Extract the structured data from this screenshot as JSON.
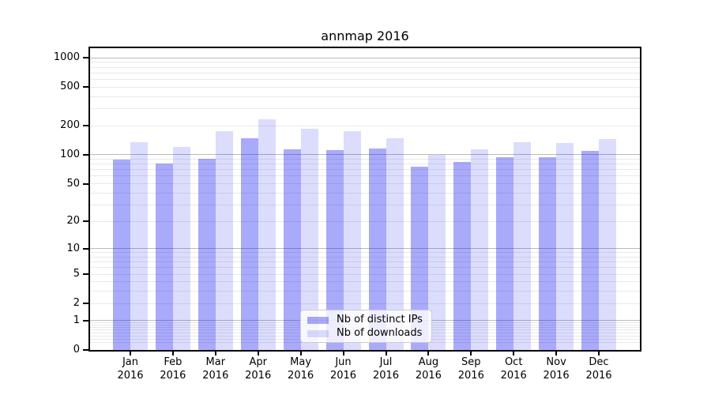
{
  "chart_data": {
    "type": "bar",
    "title": "annmap 2016",
    "year_label": "2016",
    "categories": [
      "Jan",
      "Feb",
      "Mar",
      "Apr",
      "May",
      "Jun",
      "Jul",
      "Aug",
      "Sep",
      "Oct",
      "Nov",
      "Dec"
    ],
    "series": [
      {
        "name": "Nb of distinct IPs",
        "color": "rgba(10,10,240,0.345)",
        "values": [
          89,
          81,
          91,
          147,
          113,
          112,
          115,
          75,
          84,
          94,
          94,
          109
        ]
      },
      {
        "name": "Nb of downloads",
        "color": "rgba(10,10,240,0.14)",
        "values": [
          136,
          120,
          177,
          231,
          186,
          174,
          147,
          100,
          113,
          136,
          132,
          146
        ]
      }
    ],
    "y_scale": "log1p",
    "y_ticks": [
      0,
      1,
      2,
      5,
      10,
      20,
      50,
      100,
      200,
      500,
      1000
    ],
    "ylim": [
      0,
      1250
    ],
    "grid": "on",
    "legend_position": "lower-center",
    "xlabel": "",
    "ylabel": ""
  },
  "colors": {
    "grid_major": "#bbbbbb",
    "grid_minor": "#e9e9e9",
    "spine": "#000000",
    "text": "#000000",
    "legend_border": "#cccccc",
    "legend_bg": "rgba(255,255,255,0.8)"
  }
}
